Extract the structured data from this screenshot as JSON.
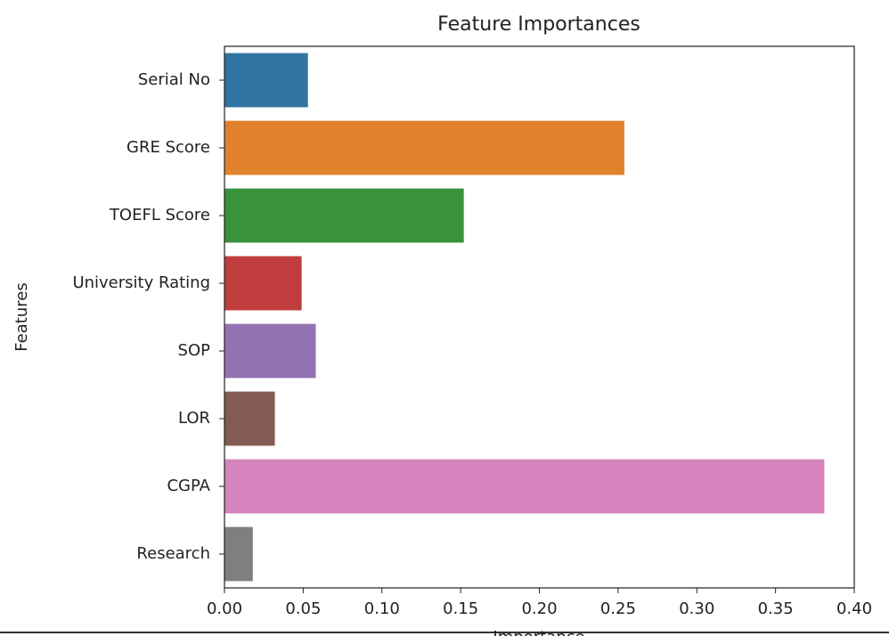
{
  "chart_data": {
    "type": "barh",
    "title": "Feature Importances",
    "x_label": "Importance",
    "y_label": "Features",
    "categories": [
      "Serial No",
      "GRE Score",
      "TOEFL Score",
      "University Rating",
      "SOP",
      "LOR",
      "CGPA",
      "Research"
    ],
    "values": [
      0.053,
      0.254,
      0.152,
      0.049,
      0.058,
      0.032,
      0.381,
      0.018
    ],
    "colors": [
      "#3274a1",
      "#e1812c",
      "#3a923a",
      "#c03d3e",
      "#9372b2",
      "#845b53",
      "#d684bd",
      "#7f7f7f"
    ],
    "xlim": [
      0,
      0.4
    ],
    "xticks": [
      {
        "value": 0,
        "label": "0.00"
      },
      {
        "value": 0.05,
        "label": "0.05"
      },
      {
        "value": 0.1,
        "label": "0.10"
      },
      {
        "value": 0.15,
        "label": "0.15"
      },
      {
        "value": 0.2,
        "label": "0.20"
      },
      {
        "value": 0.25,
        "label": "0.25"
      },
      {
        "value": 0.3,
        "label": "0.30"
      },
      {
        "value": 0.35,
        "label": "0.35"
      },
      {
        "value": 0.4,
        "label": "0.40"
      }
    ],
    "grid": false
  }
}
